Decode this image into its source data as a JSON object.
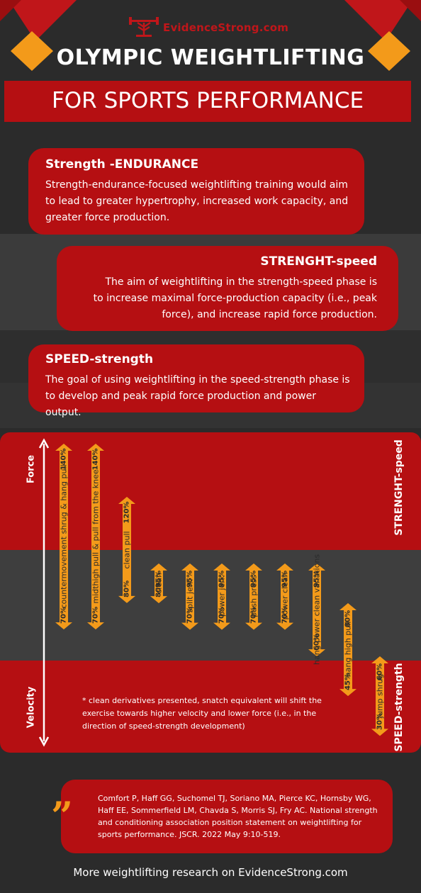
{
  "colors": {
    "background": "#2b2b2b",
    "red": "#b50f12",
    "orange": "#f39a1a",
    "band": "#3b3b3b"
  },
  "header": {
    "logo_text": "EvidenceStrong.com",
    "title": "OLYMPIC WEIGHTLIFTING",
    "subtitle": "FOR SPORTS PERFORMANCE"
  },
  "cards": [
    {
      "title": "Strength -ENDURANCE",
      "text": "Strength-endurance-focused weightlifting training would aim to lead to greater hypertrophy, increased work capacity, and greater force production."
    },
    {
      "title": "STRENGHT-speed",
      "text": "The aim of weightlifting in the strength-speed phase is to increase maximal force-production capacity (i.e., peak force), and increase rapid force production."
    },
    {
      "title": "SPEED-strength",
      "text": "The goal of using weightlifting in the speed-strength phase is to develop and peak rapid force production and power output."
    }
  ],
  "chart": {
    "y_axis_top": "Force",
    "y_axis_bottom": "Velocity",
    "zone_top_label": "STRENGHT-speed",
    "zone_bottom_label": "SPEED-strength",
    "note": "* clean derivatives presented, snatch equivalent will shift the exercise towards higher velocity and lower force (i.e., in the direction of speed-strength development)"
  },
  "chart_data": {
    "type": "range",
    "categories": [
      "countermovement shrug & hang pull",
      "midthigh pull & pull from the knee",
      "clean pull",
      "clean",
      "split jerk",
      "power jerk",
      "push press",
      "power clean",
      "hang power clean variations",
      "hang high pull",
      "jump shrug"
    ],
    "series": [
      {
        "name": "",
        "values": [
          [
            70,
            140
          ],
          [
            70,
            140
          ],
          [
            80,
            120
          ],
          [
            80,
            95
          ],
          [
            70,
            95
          ],
          [
            70,
            95
          ],
          [
            70,
            95
          ],
          [
            70,
            95
          ],
          [
            60,
            95
          ],
          [
            45,
            80
          ],
          [
            30,
            60
          ]
        ]
      }
    ],
    "labels_top": [
      "140%",
      "140%",
      "120%",
      "95%",
      "95%",
      "95%",
      "95%",
      "95%",
      "95%",
      "80%",
      "60%"
    ],
    "labels_bottom": [
      "70%",
      "70%",
      "80%",
      "80%",
      "70%",
      "70%",
      "70%",
      "70%",
      "60%",
      "45%",
      "30%"
    ]
  },
  "reference": {
    "text": "Comfort P, Haff GG, Suchomel TJ, Soriano MA, Pierce KC, Hornsby WG, Haff EE, Sommerfield LM, Chavda S, Morris SJ, Fry AC. National strength and conditioning association position statement on weightlifting for sports performance. JSCR. 2022 May 9:10-519."
  },
  "footer": {
    "text": "More weightlifting research on EvidenceStrong.com"
  }
}
